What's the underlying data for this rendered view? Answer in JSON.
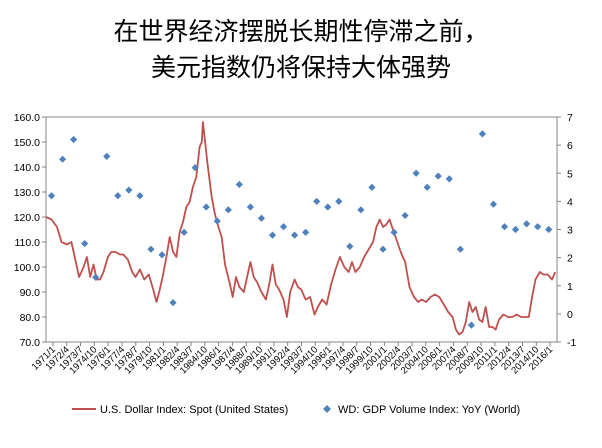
{
  "title_lines": [
    "在世界经济摆脱长期性停滞之前，",
    "美元指数仍将保持大体强势"
  ],
  "colors": {
    "line": "#c0504d",
    "points": "#4f81bd",
    "axis": "#868686"
  },
  "chart_data": {
    "type": "line+scatter",
    "left_axis": {
      "ylim": [
        70,
        160
      ],
      "ticks": [
        "70.0",
        "80.0",
        "90.0",
        "100.0",
        "110.0",
        "120.0",
        "130.0",
        "140.0",
        "150.0",
        "160.0"
      ]
    },
    "right_axis": {
      "ylim": [
        -1,
        7
      ],
      "ticks": [
        "-1",
        "0",
        "1",
        "2",
        "3",
        "4",
        "5",
        "6",
        "7"
      ]
    },
    "x_ticks": [
      "1971/1",
      "1972/4",
      "1973/7",
      "1974/10",
      "1976/1",
      "1977/4",
      "1978/7",
      "1979/10",
      "1981/1",
      "1982/4",
      "1983/7",
      "1984/10",
      "1986/1",
      "1987/4",
      "1988/7",
      "1989/10",
      "1991/1",
      "1992/4",
      "1993/7",
      "1994/10",
      "1996/1",
      "1997/4",
      "1998/7",
      "1999/10",
      "2001/1",
      "2002/4",
      "2003/7",
      "2004/10",
      "2006/1",
      "2007/4",
      "2008/7",
      "2009/10",
      "2011/1",
      "2012/4",
      "2013/7",
      "2014/10",
      "2016/1"
    ],
    "x_range": [
      1971.0,
      2017.25
    ],
    "series": [
      {
        "name": "U.S. Dollar Index: Spot (United States)",
        "axis": "left",
        "x": [
          1971.0,
          1971.5,
          1972.0,
          1972.4,
          1972.9,
          1973.3,
          1973.6,
          1974.0,
          1974.4,
          1974.7,
          1975.0,
          1975.3,
          1975.6,
          1975.9,
          1976.2,
          1976.6,
          1976.9,
          1977.3,
          1977.7,
          1978.0,
          1978.4,
          1978.8,
          1979.1,
          1979.5,
          1979.9,
          1980.3,
          1980.7,
          1981.0,
          1981.3,
          1981.6,
          1981.9,
          1982.2,
          1982.5,
          1982.8,
          1983.1,
          1983.4,
          1983.7,
          1984.0,
          1984.3,
          1984.6,
          1984.9,
          1985.1,
          1985.2,
          1985.4,
          1985.6,
          1985.8,
          1986.0,
          1986.3,
          1986.6,
          1986.9,
          1987.2,
          1987.6,
          1987.9,
          1988.2,
          1988.5,
          1988.9,
          1989.2,
          1989.5,
          1989.8,
          1990.1,
          1990.5,
          1990.9,
          1991.2,
          1991.5,
          1991.8,
          1992.1,
          1992.5,
          1992.8,
          1993.1,
          1993.5,
          1993.8,
          1994.1,
          1994.5,
          1994.9,
          1995.3,
          1995.6,
          1996.0,
          1996.4,
          1996.8,
          1997.2,
          1997.6,
          1998.0,
          1998.4,
          1998.7,
          1999.0,
          1999.4,
          1999.8,
          2000.2,
          2000.6,
          2000.9,
          2001.2,
          2001.5,
          2001.8,
          2002.1,
          2002.4,
          2002.8,
          2003.1,
          2003.5,
          2003.9,
          2004.3,
          2004.7,
          2005.0,
          2005.4,
          2005.8,
          2006.2,
          2006.6,
          2007.0,
          2007.4,
          2007.8,
          2008.1,
          2008.4,
          2008.7,
          2009.0,
          2009.3,
          2009.6,
          2009.9,
          2010.2,
          2010.5,
          2010.8,
          2011.1,
          2011.4,
          2011.7,
          2012.0,
          2012.4,
          2012.8,
          2013.2,
          2013.6,
          2014.0,
          2014.4,
          2014.7,
          2015.0,
          2015.3,
          2015.7,
          2016.0,
          2016.4,
          2016.8,
          2017.1
        ],
        "values": [
          120,
          119,
          116,
          110,
          109,
          110,
          104,
          96,
          100,
          104,
          96,
          101,
          95,
          95,
          98,
          104,
          106,
          106,
          105,
          105,
          103,
          98,
          96,
          99,
          95,
          97,
          91,
          86,
          91,
          97,
          104,
          112,
          106,
          104,
          114,
          118,
          124,
          126,
          132,
          136,
          148,
          150,
          158,
          150,
          142,
          135,
          128,
          121,
          116,
          112,
          101,
          94,
          88,
          96,
          92,
          90,
          96,
          102,
          96,
          94,
          90,
          87,
          93,
          101,
          93,
          91,
          87,
          80,
          90,
          95,
          92,
          91,
          87,
          88,
          81,
          84,
          87,
          85,
          93,
          99,
          104,
          100,
          98,
          102,
          98,
          100,
          104,
          107,
          110,
          116,
          119,
          116,
          117,
          119,
          115,
          110,
          106,
          102,
          92,
          88,
          86,
          87,
          86,
          88,
          89,
          88,
          85,
          82,
          80,
          75,
          73,
          74,
          78,
          86,
          82,
          84,
          79,
          78,
          84,
          76,
          76,
          75,
          79,
          81,
          80,
          80,
          81,
          80,
          80,
          80,
          88,
          95,
          98,
          97,
          97,
          95,
          98
        ]
      },
      {
        "name": "WD: GDP Volume Index: YoY (World)",
        "axis": "right",
        "x": [
          1971,
          1972,
          1973,
          1974,
          1975,
          1976,
          1977,
          1978,
          1979,
          1980,
          1981,
          1982,
          1983,
          1984,
          1985,
          1986,
          1987,
          1988,
          1989,
          1990,
          1991,
          1992,
          1993,
          1994,
          1995,
          1996,
          1997,
          1998,
          1999,
          2000,
          2001,
          2002,
          2003,
          2004,
          2005,
          2006,
          2007,
          2008,
          2009,
          2010,
          2011,
          2012,
          2013,
          2014,
          2015,
          2016
        ],
        "values": [
          4.2,
          5.5,
          6.2,
          2.5,
          1.3,
          5.6,
          4.2,
          4.4,
          4.2,
          2.3,
          2.1,
          0.4,
          2.9,
          5.2,
          3.8,
          3.3,
          3.7,
          4.6,
          3.8,
          3.4,
          2.8,
          3.1,
          2.8,
          2.9,
          4.0,
          3.8,
          4.0,
          2.4,
          3.7,
          4.5,
          2.3,
          2.9,
          3.5,
          5.0,
          4.5,
          4.9,
          4.8,
          2.3,
          -0.4,
          6.4,
          3.9,
          3.1,
          3.0,
          3.2,
          3.1,
          3.0
        ]
      }
    ],
    "legend": {
      "placement": "bottom"
    }
  }
}
